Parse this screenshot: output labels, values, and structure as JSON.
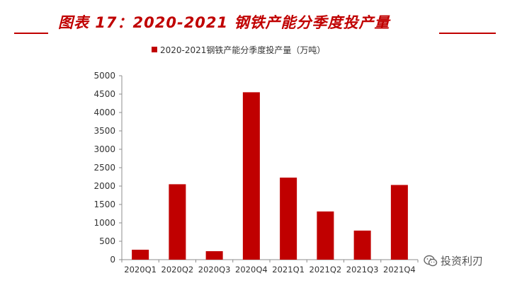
{
  "figure": {
    "title": "图表 17：2020-2021 钢铁产能分季度投产量"
  },
  "watermark": {
    "text": "投资利刃",
    "icon": "wechat-icon"
  },
  "colors": {
    "accent": "#c00000",
    "bar": "#c00000",
    "axis": "#8c8c8c",
    "text": "#333333"
  },
  "chart_data": {
    "type": "bar",
    "categories": [
      "2020Q1",
      "2020Q2",
      "2020Q3",
      "2020Q4",
      "2021Q1",
      "2021Q2",
      "2021Q3",
      "2021Q4"
    ],
    "series": [
      {
        "name": "2020-2021钢铁产能分季度投产量（万吨）",
        "values": [
          270,
          2050,
          230,
          4550,
          2230,
          1310,
          790,
          2030
        ]
      }
    ],
    "ylim": [
      0,
      5000
    ],
    "yticks": [
      0,
      500,
      1000,
      1500,
      2000,
      2500,
      3000,
      3500,
      4000,
      4500,
      5000
    ],
    "grid": false,
    "legend": "top-center"
  }
}
